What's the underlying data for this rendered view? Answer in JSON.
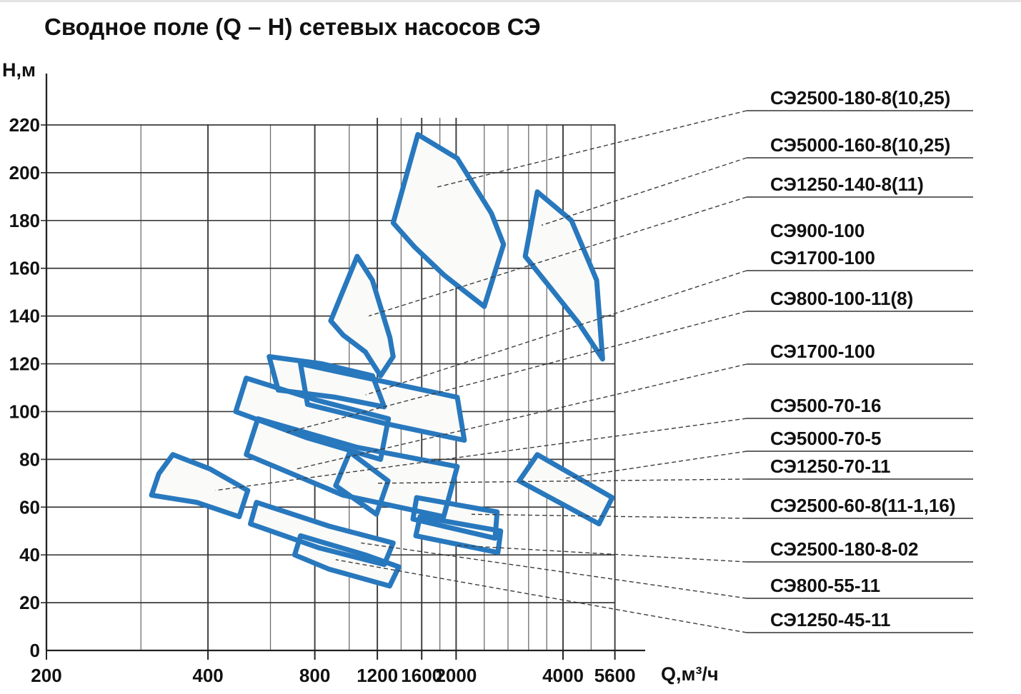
{
  "title": "Сводное поле (Q – Н) сетевых насосов СЭ",
  "chart_data": {
    "type": "area",
    "title": "Сводное поле (Q – Н) сетевых насосов СЭ",
    "xlabel": "Q,м³/ч",
    "ylabel": "Н,м",
    "x_scale": "logarithmic (compressed segment 200–400)",
    "grid": true,
    "legend_position": "right",
    "xlim": [
      200,
      5600
    ],
    "ylim": [
      0,
      220
    ],
    "x_ticks": [
      200,
      400,
      800,
      1200,
      1600,
      2000,
      4000,
      5600
    ],
    "x_gridlines": [
      200,
      300,
      400,
      600,
      800,
      1000,
      1200,
      1400,
      1600,
      1800,
      2000,
      2400,
      2800,
      3200,
      3600,
      4000,
      4800,
      5600
    ],
    "y_ticks": [
      0,
      20,
      40,
      60,
      80,
      100,
      120,
      140,
      160,
      180,
      200,
      220
    ],
    "regions": [
      {
        "label": "СЭ2500-180-8(10,25)",
        "points": [
          [
            1330,
            179
          ],
          [
            1560,
            216
          ],
          [
            2015,
            206
          ],
          [
            2515,
            183
          ],
          [
            2720,
            170
          ],
          [
            2400,
            144
          ],
          [
            1855,
            157
          ],
          [
            1525,
            169
          ]
        ],
        "leader": [
          1772,
          194
        ]
      },
      {
        "label": "СЭ5000-160-8(10,25)",
        "points": [
          [
            3130,
            165
          ],
          [
            3385,
            192
          ],
          [
            4225,
            180
          ],
          [
            4975,
            155
          ],
          [
            5170,
            122
          ],
          [
            4430,
            137
          ],
          [
            3680,
            152
          ]
        ],
        "leader": [
          3480,
          178
        ]
      },
      {
        "label": "СЭ1250-140-8(11)",
        "points": [
          [
            887,
            138
          ],
          [
            1053,
            165
          ],
          [
            1162,
            155
          ],
          [
            1302,
            131
          ],
          [
            1330,
            123
          ],
          [
            1225,
            115
          ],
          [
            1110,
            125
          ],
          [
            962,
            132
          ]
        ],
        "leader": [
          1135,
          140
        ]
      },
      {
        "label": "СЭ900-100",
        "points": [
          [
            595,
            123
          ],
          [
            838,
            120
          ],
          [
            1163,
            115
          ],
          [
            1255,
            102
          ],
          [
            916,
            106
          ],
          [
            631,
            109
          ]
        ],
        "leader": null
      },
      {
        "label": "СЭ1700-100",
        "points": [
          [
            729,
            120
          ],
          [
            1212,
            113
          ],
          [
            2015,
            106
          ],
          [
            2110,
            88
          ],
          [
            1262,
            95
          ],
          [
            763,
            103
          ]
        ],
        "leader": [
          1112,
          107
        ]
      },
      {
        "label": "СЭ800-100-11(8)",
        "points": [
          [
            513,
            114
          ],
          [
            800,
            105
          ],
          [
            1290,
            97
          ],
          [
            1225,
            80
          ],
          [
            762,
            89
          ],
          [
            479,
            100
          ]
        ],
        "leader": [
          656,
          91
        ]
      },
      {
        "label": "СЭ1700-100",
        "points": [
          [
            553,
            97
          ],
          [
            1054,
            85
          ],
          [
            2015,
            77
          ],
          [
            1845,
            56
          ],
          [
            960,
            65
          ],
          [
            513,
            82
          ]
        ],
        "leader": [
          712,
          76
        ]
      },
      {
        "label": "СЭ500-70-16",
        "points": [
          [
            344,
            82
          ],
          [
            405,
            76
          ],
          [
            518,
            67
          ],
          [
            490,
            56
          ],
          [
            381,
            62
          ],
          [
            314,
            65
          ],
          [
            324,
            74
          ]
        ],
        "leader": [
          420,
          67
        ]
      },
      {
        "label": "СЭ5000-70-5",
        "points": [
          [
            3385,
            82
          ],
          [
            5505,
            64
          ],
          [
            5050,
            53
          ],
          [
            3010,
            71
          ]
        ],
        "leader": [
          4035,
          72
        ]
      },
      {
        "label": "СЭ1250-70-11",
        "points": [
          [
            1004,
            83
          ],
          [
            1287,
            71
          ],
          [
            1193,
            57
          ],
          [
            916,
            69
          ]
        ],
        "leader": [
          1200,
          70
        ]
      },
      {
        "label": "СЭ2500-60-8(11-1,16)",
        "points": [
          [
            1548,
            64
          ],
          [
            2610,
            58
          ],
          [
            2575,
            47
          ],
          [
            1512,
            55
          ]
        ],
        "leader": [
          2210,
          57
        ]
      },
      {
        "label": "СЭ2500-180-8-02",
        "points": [
          [
            1583,
            56
          ],
          [
            2670,
            50
          ],
          [
            2623,
            41
          ],
          [
            1540,
            48
          ]
        ],
        "leader": [
          2015,
          44
        ]
      },
      {
        "label": "СЭ800-55-11",
        "points": [
          [
            548,
            62
          ],
          [
            879,
            52
          ],
          [
            1330,
            45
          ],
          [
            1255,
            36
          ],
          [
            820,
            43
          ],
          [
            527,
            53
          ]
        ],
        "leader": [
          1080,
          45
        ]
      },
      {
        "label": "СЭ1250-45-11",
        "points": [
          [
            729,
            48
          ],
          [
            1110,
            40
          ],
          [
            1380,
            35
          ],
          [
            1300,
            27
          ],
          [
            879,
            34
          ],
          [
            702,
            40
          ]
        ],
        "leader": [
          916,
          38
        ]
      }
    ],
    "colors": {
      "region_stroke": "#2878be",
      "region_fill": "#fafaf8",
      "grid_major": "#3a3a3a",
      "grid_minor": "#6e6e6e",
      "leader": "#3c3c3c",
      "underline": "#4f4f4f",
      "text": "#111111"
    }
  }
}
